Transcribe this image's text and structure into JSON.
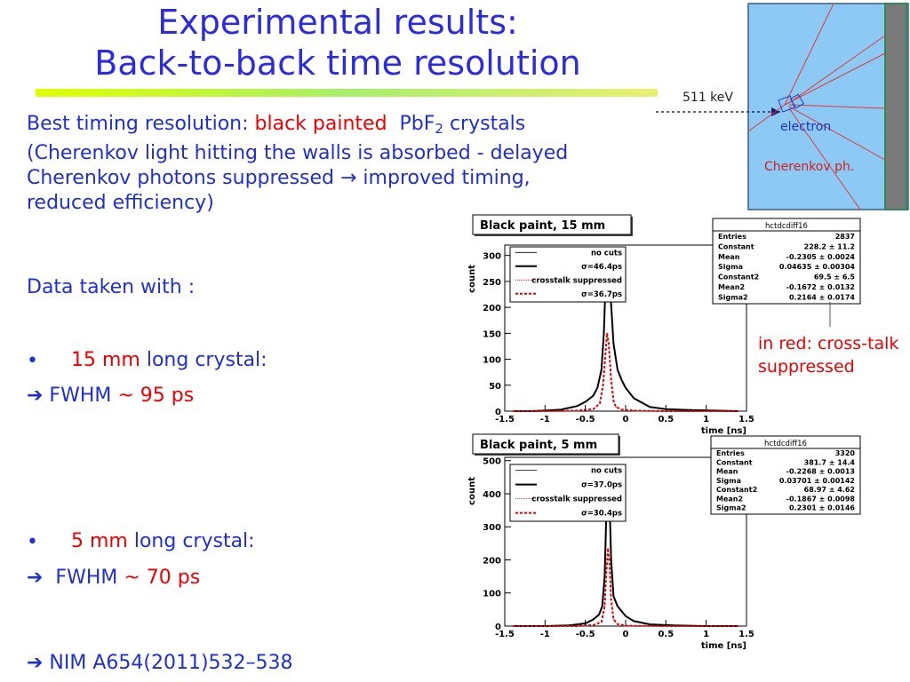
{
  "slide": {
    "title_line1": "Experimental results:",
    "title_line2": "Back-to-back time resolution",
    "intro": {
      "prefix": "Best timing resolution: ",
      "highlight": "black painted",
      "suffix1": "  PbF",
      "subscript": "2",
      "suffix2": " crystals",
      "line2": "(Cherenkov light hitting the walls is absorbed - delayed",
      "line3": "Cherenkov photons suppressed → improved timing,",
      "line4": "reduced efficiency)"
    },
    "data_taken": "Data taken with :",
    "bullet1": {
      "symbol": "•",
      "highlight": "15 mm",
      "text": " long crystal:"
    },
    "fwhm1": {
      "arrow": "➔",
      "text": " FWHM ",
      "value": "~ 95 ps"
    },
    "bullet2": {
      "symbol": "•",
      "highlight": "5 mm",
      "text": " long crystal:"
    },
    "fwhm2": {
      "arrow": "➔",
      "text": "  FWHM ",
      "value": "~ 70 ps"
    },
    "reference": {
      "arrow": "➔",
      "text": " NIM A654(2011)532–538"
    },
    "red_note_line1": "in red: cross-talk",
    "red_note_line2": "suppressed"
  },
  "diagram": {
    "energy_label": "511 keV",
    "electron_label": "electron",
    "cherenkov_label": "Cherenkov ph."
  },
  "chart_data": [
    {
      "type": "line",
      "title": "Black paint, 15 mm",
      "xlabel": "time [ns]",
      "ylabel": "count",
      "xlim": [
        -1.5,
        1.5
      ],
      "ylim": [
        0,
        320
      ],
      "xticks": [
        "-1.5",
        "-1",
        "-0.5",
        "0",
        "0.5",
        "1",
        "1.5"
      ],
      "yticks": [
        "0",
        "50",
        "100",
        "150",
        "200",
        "250",
        "300"
      ],
      "legend": [
        {
          "label": "no cuts",
          "sub": ""
        },
        {
          "label": "",
          "sub": "σ=46.4ps"
        },
        {
          "label": "crosstalk suppressed",
          "sub": ""
        },
        {
          "label": "",
          "sub": "σ=36.7ps"
        }
      ],
      "stats": {
        "name": "hctdcdiff16",
        "rows": [
          [
            "Entries",
            "2837"
          ],
          [
            "Constant",
            "228.2 ± 11.2"
          ],
          [
            "Mean",
            "-0.2305 ± 0.0024"
          ],
          [
            "Sigma",
            "0.04635 ± 0.00304"
          ],
          [
            "Constant2",
            "69.5 ± 6.5"
          ],
          [
            "Mean2",
            "-0.1672 ± 0.0132"
          ],
          [
            "Sigma2",
            "0.2164 ± 0.0174"
          ]
        ]
      },
      "series": [
        {
          "name": "no cuts",
          "x": [
            -1.4,
            -1.2,
            -1.0,
            -0.8,
            -0.6,
            -0.5,
            -0.4,
            -0.35,
            -0.3,
            -0.27,
            -0.25,
            -0.23,
            -0.21,
            -0.19,
            -0.15,
            -0.1,
            -0.05,
            0.0,
            0.1,
            0.3,
            0.5,
            0.8,
            1.1,
            1.4
          ],
          "y": [
            0,
            0,
            1,
            3,
            10,
            18,
            30,
            45,
            80,
            150,
            240,
            290,
            280,
            230,
            130,
            80,
            60,
            45,
            25,
            8,
            4,
            2,
            1,
            0
          ]
        },
        {
          "name": "crosstalk suppressed",
          "x": [
            -1.4,
            -1.0,
            -0.6,
            -0.4,
            -0.32,
            -0.28,
            -0.25,
            -0.23,
            -0.21,
            -0.18,
            -0.15,
            -0.12,
            -0.05,
            0.1,
            0.5,
            1.4
          ],
          "y": [
            0,
            0,
            1,
            4,
            15,
            50,
            110,
            150,
            130,
            60,
            20,
            8,
            3,
            1,
            0,
            0
          ]
        }
      ]
    },
    {
      "type": "line",
      "title": "Black paint, 5 mm",
      "xlabel": "time [ns]",
      "ylabel": "count",
      "xlim": [
        -1.5,
        1.5
      ],
      "ylim": [
        0,
        510
      ],
      "xticks": [
        "-1.5",
        "-1",
        "-0.5",
        "0",
        "0.5",
        "1",
        "1.5"
      ],
      "yticks": [
        "0",
        "100",
        "200",
        "300",
        "400",
        "500"
      ],
      "legend": [
        {
          "label": "no cuts",
          "sub": ""
        },
        {
          "label": "",
          "sub": "σ=37.0ps"
        },
        {
          "label": "crosstalk suppressed",
          "sub": ""
        },
        {
          "label": "",
          "sub": "σ=30.4ps"
        }
      ],
      "stats": {
        "name": "hctdcdiff16",
        "rows": [
          [
            "Entries",
            "3320"
          ],
          [
            "Constant",
            "381.7 ± 14.4"
          ],
          [
            "Mean",
            "-0.2268 ± 0.0013"
          ],
          [
            "Sigma",
            "0.03701 ± 0.00142"
          ],
          [
            "Constant2",
            "68.97 ± 4.62"
          ],
          [
            "Mean2",
            "-0.1867 ± 0.0098"
          ],
          [
            "Sigma2",
            "0.2301 ± 0.0146"
          ]
        ]
      },
      "series": [
        {
          "name": "no cuts",
          "x": [
            -1.4,
            -1.0,
            -0.7,
            -0.5,
            -0.4,
            -0.33,
            -0.29,
            -0.26,
            -0.24,
            -0.22,
            -0.2,
            -0.18,
            -0.15,
            -0.1,
            -0.05,
            0.0,
            0.1,
            0.3,
            0.6,
            1.0,
            1.4
          ],
          "y": [
            0,
            0,
            2,
            8,
            20,
            35,
            60,
            150,
            330,
            450,
            380,
            200,
            90,
            60,
            45,
            30,
            15,
            5,
            2,
            0,
            0
          ]
        },
        {
          "name": "crosstalk suppressed",
          "x": [
            -1.4,
            -0.6,
            -0.4,
            -0.3,
            -0.26,
            -0.24,
            -0.22,
            -0.2,
            -0.18,
            -0.15,
            -0.1,
            0.0,
            0.5,
            1.4
          ],
          "y": [
            0,
            0,
            3,
            12,
            60,
            160,
            235,
            190,
            80,
            20,
            6,
            1,
            0,
            0
          ]
        }
      ]
    }
  ]
}
